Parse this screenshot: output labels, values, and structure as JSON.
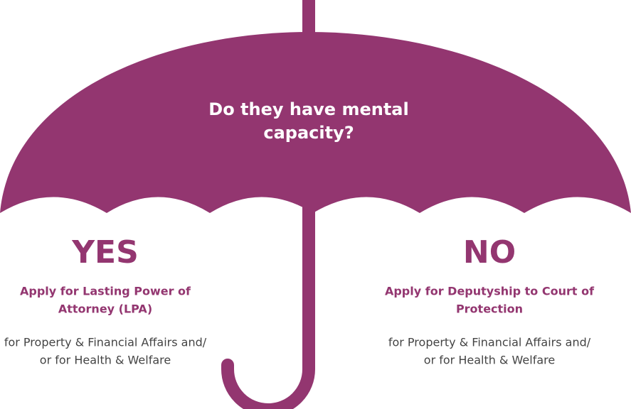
{
  "question": [
    "Do they have mental",
    "capacity?"
  ],
  "yes": {
    "title": "YES",
    "action": [
      "Apply for Lasting Power of",
      "Attorney (LPA)"
    ],
    "detail": [
      "for Property & Financial Affairs and/",
      "or for Health & Welfare"
    ]
  },
  "no": {
    "title": "NO",
    "action": [
      "Apply for Deputyship to Court of",
      "Protection"
    ],
    "detail": [
      "for Property & Financial Affairs and/",
      "or for Health & Welfare"
    ]
  }
}
